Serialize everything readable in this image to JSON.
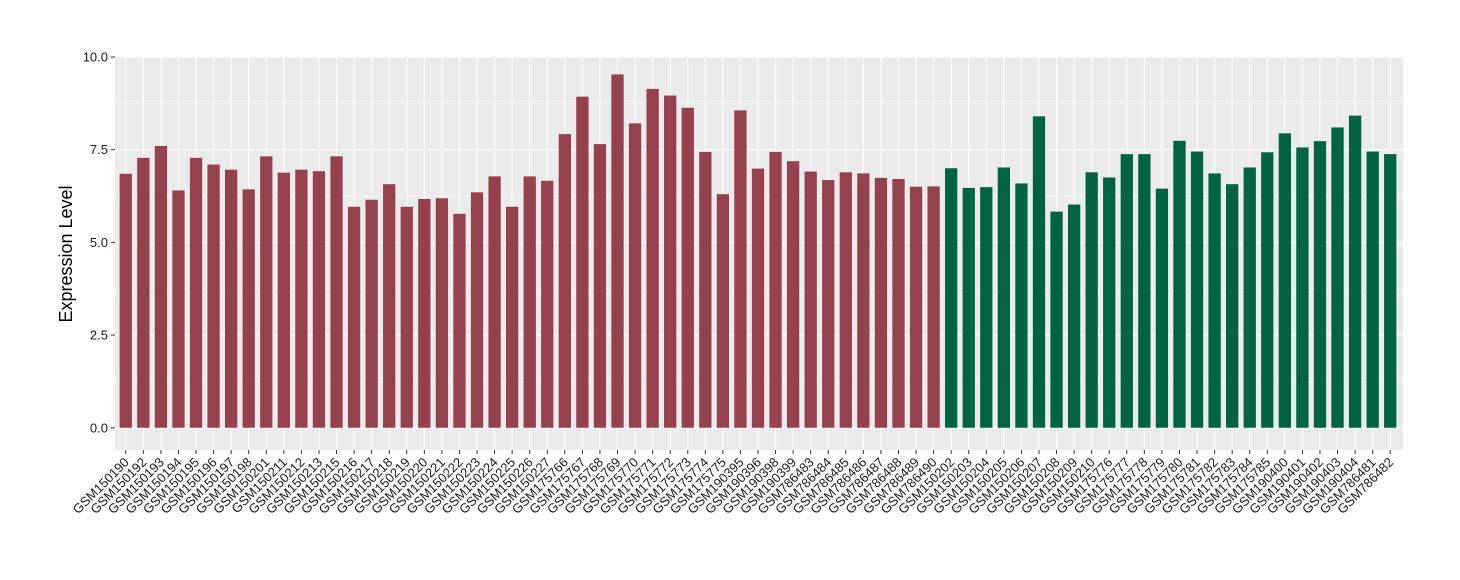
{
  "chart_data": {
    "type": "bar",
    "title": "",
    "xlabel": "",
    "ylabel": "Expression Level",
    "ylim": [
      -0.6,
      10.0
    ],
    "yticks": [
      0.0,
      2.5,
      5.0,
      7.5,
      10.0
    ],
    "ytick_labels": [
      "0.0",
      "2.5",
      "5.0",
      "7.5",
      "10.0"
    ],
    "grid": true,
    "legend": "none",
    "background_color": "#EBEBEB",
    "grid_color": "#FFFFFF",
    "colors": {
      "group1": "#96424E",
      "group2": "#006342"
    },
    "categories": [
      "GSM150190",
      "GSM150192",
      "GSM150193",
      "GSM150194",
      "GSM150195",
      "GSM150196",
      "GSM150197",
      "GSM150198",
      "GSM150201",
      "GSM150211",
      "GSM150212",
      "GSM150213",
      "GSM150215",
      "GSM150216",
      "GSM150217",
      "GSM150218",
      "GSM150219",
      "GSM150220",
      "GSM150221",
      "GSM150222",
      "GSM150223",
      "GSM150224",
      "GSM150225",
      "GSM150226",
      "GSM150227",
      "GSM175766",
      "GSM175767",
      "GSM175768",
      "GSM175769",
      "GSM175770",
      "GSM175771",
      "GSM175772",
      "GSM175773",
      "GSM175774",
      "GSM175775",
      "GSM190395",
      "GSM190396",
      "GSM190398",
      "GSM190399",
      "GSM786483",
      "GSM786484",
      "GSM786485",
      "GSM786486",
      "GSM786487",
      "GSM786488",
      "GSM786489",
      "GSM786490",
      "GSM150202",
      "GSM150203",
      "GSM150204",
      "GSM150205",
      "GSM150206",
      "GSM150207",
      "GSM150208",
      "GSM150209",
      "GSM150210",
      "GSM175776",
      "GSM175777",
      "GSM175778",
      "GSM175779",
      "GSM175780",
      "GSM175781",
      "GSM175782",
      "GSM175783",
      "GSM175784",
      "GSM175785",
      "GSM190400",
      "GSM190401",
      "GSM190402",
      "GSM190403",
      "GSM190404",
      "GSM786481",
      "GSM786482"
    ],
    "values": [
      6.85,
      7.28,
      7.6,
      6.4,
      7.28,
      7.1,
      6.96,
      6.43,
      7.32,
      6.88,
      6.96,
      6.92,
      7.32,
      5.96,
      6.15,
      6.57,
      5.96,
      6.17,
      6.19,
      5.77,
      6.35,
      6.78,
      5.96,
      6.78,
      6.66,
      7.92,
      8.93,
      7.65,
      9.53,
      8.21,
      9.14,
      8.96,
      8.63,
      7.44,
      6.3,
      8.56,
      6.99,
      7.44,
      7.19,
      6.91,
      6.68,
      6.89,
      6.86,
      6.74,
      6.71,
      6.5,
      6.51,
      7.0,
      6.47,
      6.49,
      7.02,
      6.59,
      8.4,
      5.83,
      6.02,
      6.89,
      6.75,
      7.38,
      7.38,
      6.45,
      7.74,
      7.45,
      6.86,
      6.57,
      7.02,
      7.43,
      7.94,
      7.56,
      7.73,
      8.1,
      8.42,
      7.45,
      7.38
    ],
    "groups": [
      1,
      1,
      1,
      1,
      1,
      1,
      1,
      1,
      1,
      1,
      1,
      1,
      1,
      1,
      1,
      1,
      1,
      1,
      1,
      1,
      1,
      1,
      1,
      1,
      1,
      1,
      1,
      1,
      1,
      1,
      1,
      1,
      1,
      1,
      1,
      1,
      1,
      1,
      1,
      1,
      1,
      1,
      1,
      1,
      1,
      1,
      1,
      2,
      2,
      2,
      2,
      2,
      2,
      2,
      2,
      2,
      2,
      2,
      2,
      2,
      2,
      2,
      2,
      2,
      2,
      2,
      2,
      2,
      2,
      2,
      2,
      2,
      2
    ]
  }
}
